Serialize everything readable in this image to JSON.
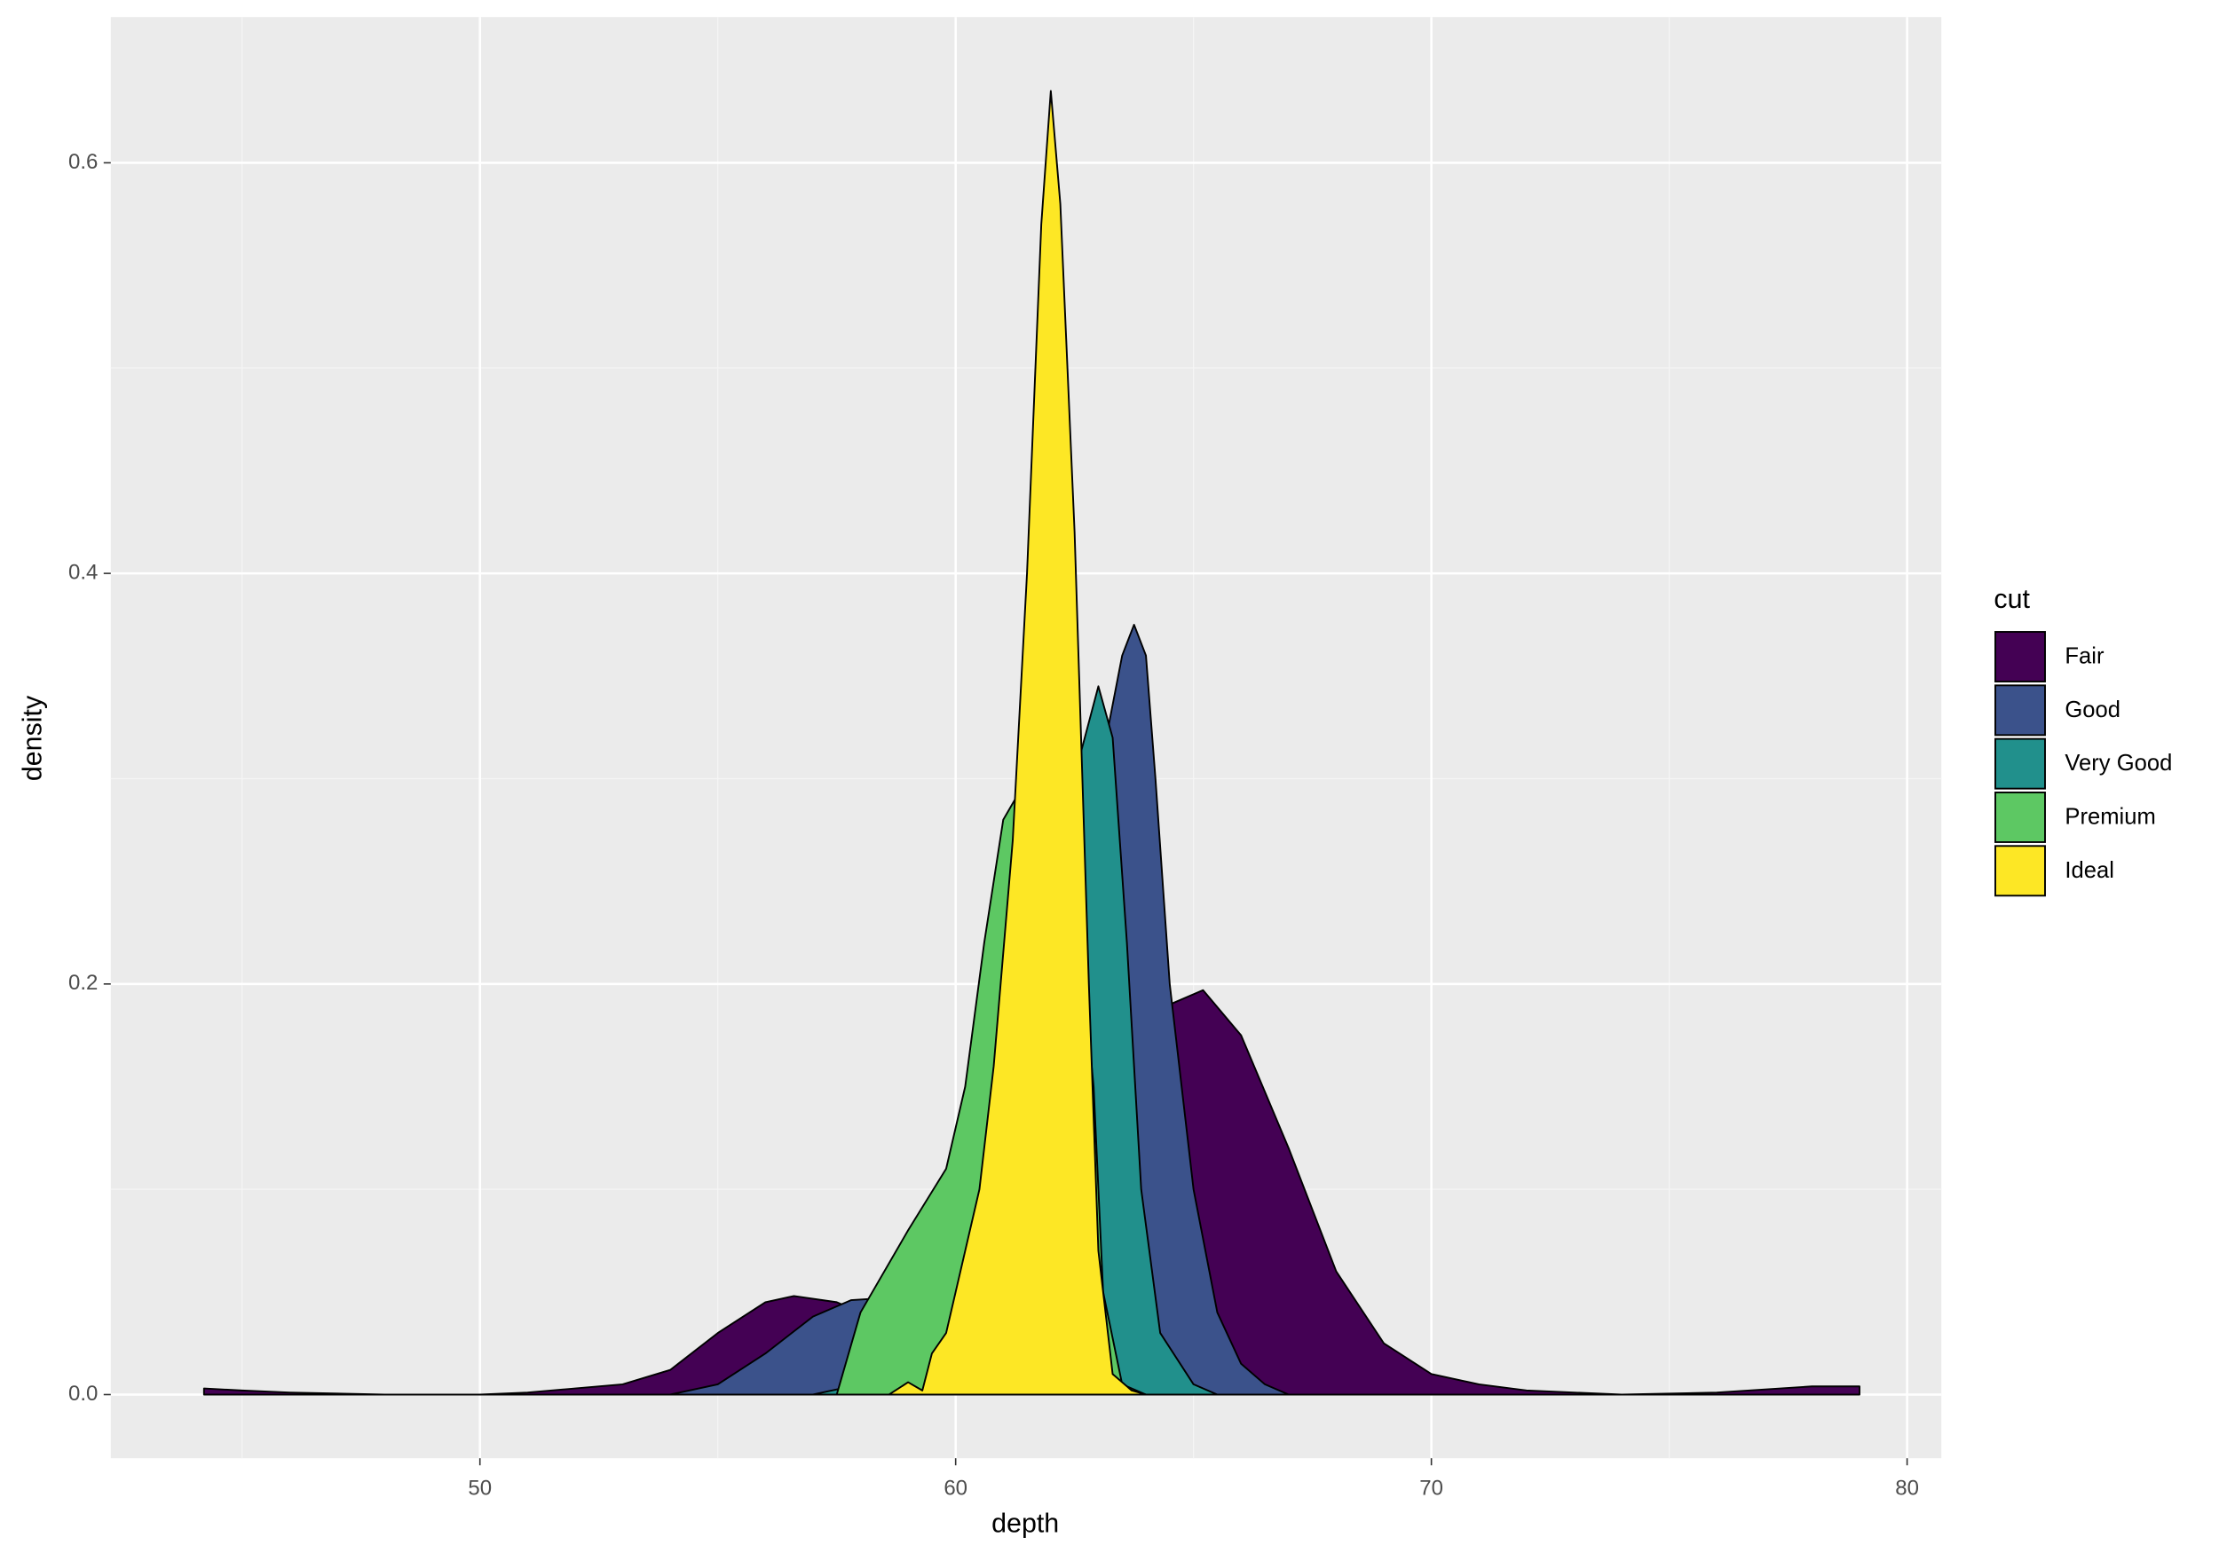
{
  "chart_data": {
    "type": "density",
    "x_label": "depth",
    "y_label": "density",
    "legend_title": "cut",
    "xlim": [
      42.24,
      80.72
    ],
    "ylim": [
      -0.031,
      0.671
    ],
    "xticks": [
      50,
      60,
      70,
      80
    ],
    "yticks": [
      {
        "value": 0,
        "label": "0.0"
      },
      {
        "value": 0.2,
        "label": "0.2"
      },
      {
        "value": 0.4,
        "label": "0.4"
      },
      {
        "value": 0.6,
        "label": "0.6"
      }
    ],
    "xminor": [
      45,
      55,
      65,
      75
    ],
    "yminor": [
      0.1,
      0.3,
      0.5
    ],
    "grid": true,
    "legend": "right",
    "series": [
      {
        "name": "Fair",
        "color": "#440154",
        "x": [
          44.2,
          45,
          46,
          48,
          50,
          51,
          52,
          53,
          54,
          55,
          56,
          56.6,
          57.5,
          58,
          59,
          60,
          61,
          62,
          63,
          64,
          64.5,
          65.2,
          66,
          67,
          68,
          69,
          70,
          71,
          72,
          74,
          76,
          78,
          79
        ],
        "values": [
          0.003,
          0.002,
          0.001,
          0,
          0,
          0.001,
          0.003,
          0.005,
          0.012,
          0.03,
          0.045,
          0.048,
          0.045,
          0.04,
          0.04,
          0.05,
          0.07,
          0.1,
          0.14,
          0.177,
          0.19,
          0.197,
          0.175,
          0.12,
          0.06,
          0.025,
          0.01,
          0.005,
          0.002,
          0,
          0.001,
          0.004,
          0.004
        ]
      },
      {
        "name": "Good",
        "color": "#3b528b",
        "x": [
          54,
          55,
          56,
          57,
          57.8,
          58.5,
          59,
          60,
          61,
          62,
          63,
          63.5,
          63.75,
          64,
          64.2,
          64.5,
          65,
          65.5,
          66,
          66.5,
          67
        ],
        "values": [
          0,
          0.005,
          0.02,
          0.038,
          0.046,
          0.047,
          0.05,
          0.08,
          0.15,
          0.23,
          0.3,
          0.36,
          0.375,
          0.36,
          0.3,
          0.2,
          0.1,
          0.04,
          0.015,
          0.005,
          0
        ]
      },
      {
        "name": "Very Good",
        "color": "#21908c",
        "x": [
          57,
          58,
          59,
          60,
          61,
          62,
          62.6,
          63,
          63.3,
          63.6,
          63.9,
          64.3,
          65,
          65.5
        ],
        "values": [
          0,
          0.005,
          0.03,
          0.1,
          0.22,
          0.3,
          0.31,
          0.345,
          0.32,
          0.22,
          0.1,
          0.03,
          0.005,
          0
        ]
      },
      {
        "name": "Premium",
        "color": "#5dc863",
        "x": [
          57.5,
          58,
          59,
          59.8,
          60.2,
          60.6,
          61,
          61.5,
          62,
          62.5,
          62.9,
          63.1,
          63.5,
          64
        ],
        "values": [
          0,
          0.04,
          0.08,
          0.11,
          0.15,
          0.22,
          0.28,
          0.3,
          0.3,
          0.25,
          0.15,
          0.05,
          0.005,
          0
        ]
      },
      {
        "name": "Ideal",
        "color": "#fde725",
        "x": [
          58.6,
          59,
          59.3,
          59.5,
          59.8,
          60.2,
          60.5,
          60.8,
          61.2,
          61.5,
          61.8,
          62,
          62.2,
          62.5,
          62.8,
          63,
          63.3,
          63.7,
          64
        ],
        "values": [
          0,
          0.006,
          0.002,
          0.02,
          0.03,
          0.07,
          0.1,
          0.16,
          0.27,
          0.4,
          0.57,
          0.635,
          0.58,
          0.42,
          0.2,
          0.07,
          0.01,
          0.002,
          0
        ]
      }
    ]
  }
}
